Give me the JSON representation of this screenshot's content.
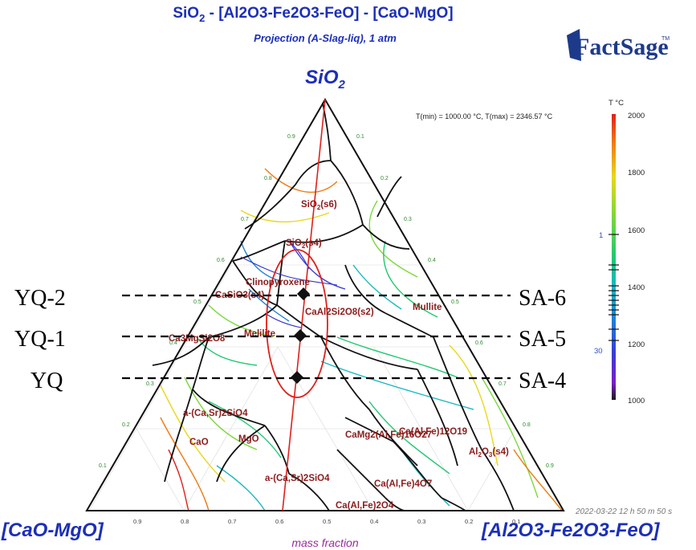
{
  "title": "SiO2 - [Al2O3-Fe2O3-FeO] - [CaO-MgO]",
  "title_parts": {
    "a": "SiO",
    "a_sub": "2",
    "b": " - [Al2O3-Fe2O3-FeO] - [CaO-MgO]"
  },
  "subtitle": "Projection (A-Slag-liq), 1 atm",
  "logo": {
    "text": "FactSage",
    "tm": "TM"
  },
  "corners": {
    "top": {
      "main": "SiO",
      "sub": "2"
    },
    "left": "[CaO-MgO]",
    "right": "[Al2O3-Fe2O3-FeO]"
  },
  "temp_range": "T(min) = 1000.00 °C, T(max) = 2346.57 °C",
  "colorbar": {
    "unit": "T °C",
    "ticks": [
      "2000",
      "1800",
      "1600",
      "1400",
      "1200",
      "1000"
    ],
    "tick_values": [
      2000,
      1800,
      1600,
      1400,
      1200,
      1000
    ],
    "side_labels": [
      "1",
      "30"
    ],
    "colors": [
      "#e0201a",
      "#f07a10",
      "#e8d81a",
      "#7ad83a",
      "#20c870",
      "#18b8c0",
      "#2080d8",
      "#3a3ad8",
      "#7a20c8",
      "#1a1a1a"
    ]
  },
  "phases": {
    "sio2_s6": {
      "main": "SiO",
      "sub": "2",
      "rest": "(s6)"
    },
    "sio2_s4": {
      "main": "SiO",
      "sub": "2",
      "rest": "(s4)"
    },
    "clinopyroxene": "Clinopyroxene",
    "casio3": "CaSiO3(s4)",
    "anorthite": "CaAl2Si2O8(s2)",
    "mullite_right": "Mullite",
    "camg_si": "Ca3MgSi2O8",
    "melilite": "Melilite",
    "a_casr_upper": "a-(Ca,Sr)2SiO4",
    "cao": "CaO",
    "mgo": "MgO",
    "camg_alfe": "CaMg2(Al,Fe)16O27",
    "alfe_12o19": "Ca(Al,Fe)12O19",
    "al2o3_s4": {
      "main": "Al",
      "sub1": "2",
      "mid": "O",
      "sub2": "3",
      "rest": "(s4)"
    },
    "a_casr_lower": "a-(Ca,Sr)2SiO4",
    "ca_alfe_4o7": "Ca(Al,Fe)4O7",
    "ca_alfe_2o4": "Ca(Al,Fe)2O4"
  },
  "samples": {
    "left": [
      "YQ-2",
      "YQ-1",
      "YQ"
    ],
    "right": [
      "SA-6",
      "SA-5",
      "SA-4"
    ]
  },
  "timestamp": "2022-03-22  12 h 50 m 50 s",
  "axis_label": "mass fraction",
  "bottom_ticks": [
    "0.9",
    "0.8",
    "0.7",
    "0.6",
    "0.5",
    "0.4",
    "0.3",
    "0.2",
    "0.1"
  ],
  "left_ticks": [
    "0.1",
    "0.2",
    "0.3",
    "0.4",
    "0.5",
    "0.6",
    "0.7",
    "0.8",
    "0.9"
  ],
  "right_ticks": [
    "0.1",
    "0.2",
    "0.3",
    "0.4",
    "0.5",
    "0.6",
    "0.7",
    "0.8",
    "0.9"
  ]
}
